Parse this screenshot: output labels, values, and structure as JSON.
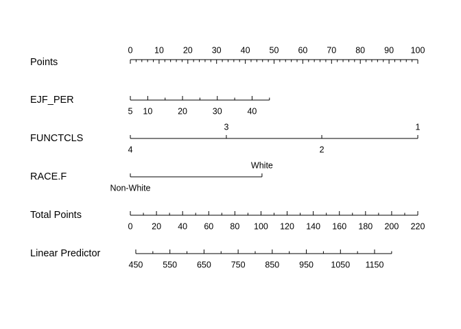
{
  "chart_data": {
    "type": "nomogram",
    "rows": [
      {
        "name": "Points",
        "lim": [
          0,
          100
        ],
        "points": [
          0,
          100
        ],
        "label_side": "above",
        "ticks": [
          0,
          10,
          20,
          30,
          40,
          50,
          60,
          70,
          80,
          90,
          100
        ],
        "minor_ticks": [
          2,
          4,
          6,
          8,
          12,
          14,
          16,
          18,
          22,
          24,
          26,
          28,
          32,
          34,
          36,
          38,
          42,
          44,
          46,
          48,
          52,
          54,
          56,
          58,
          62,
          64,
          66,
          68,
          72,
          74,
          76,
          78,
          82,
          84,
          86,
          88,
          92,
          94,
          96,
          98
        ]
      },
      {
        "name": "EJF_PER",
        "lim": [
          5,
          45
        ],
        "points": [
          0,
          48.4
        ],
        "label_side": "below",
        "ticks": [
          5,
          10,
          20,
          30,
          40
        ],
        "minor_ticks": [
          15,
          25,
          35,
          45
        ]
      },
      {
        "name": "FUNCTCLS",
        "levels": [
          {
            "label": "4",
            "points": 0,
            "side": "below"
          },
          {
            "label": "3",
            "points": 33.4,
            "side": "above"
          },
          {
            "label": "2",
            "points": 66.6,
            "side": "below"
          },
          {
            "label": "1",
            "points": 100,
            "side": "above"
          }
        ]
      },
      {
        "name": "RACE.F",
        "levels": [
          {
            "label": "Non-White",
            "points": 0,
            "side": "below"
          },
          {
            "label": "White",
            "points": 45.8,
            "side": "above"
          }
        ]
      },
      {
        "name": "Total Points",
        "lim": [
          0,
          220
        ],
        "points": [
          0,
          100
        ],
        "label_side": "below",
        "ticks": [
          0,
          20,
          40,
          60,
          80,
          100,
          120,
          140,
          160,
          180,
          200,
          220
        ],
        "minor_ticks": [
          10,
          30,
          50,
          70,
          90,
          110,
          130,
          150,
          170,
          190,
          210
        ]
      },
      {
        "name": "Linear Predictor",
        "lim": [
          450,
          1200
        ],
        "points": [
          1.9,
          90.9
        ],
        "label_side": "below",
        "ticks": [
          450,
          550,
          650,
          750,
          850,
          950,
          1050,
          1150
        ],
        "minor_ticks": [
          500,
          600,
          700,
          800,
          900,
          1000,
          1100,
          1200
        ]
      }
    ]
  }
}
